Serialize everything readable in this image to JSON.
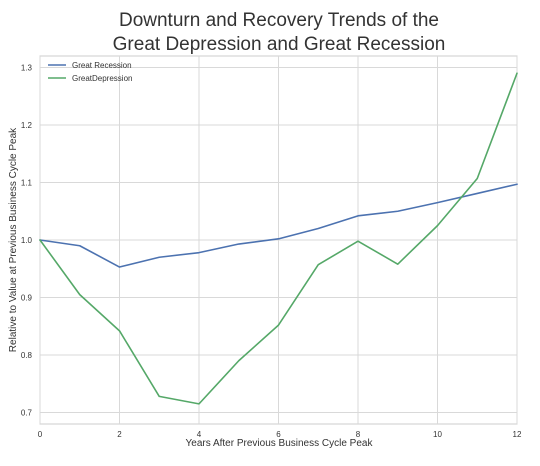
{
  "chart_data": {
    "type": "line",
    "title_lines": [
      "Downturn and Recovery Trends of the",
      "Great Depression and Great Recession"
    ],
    "xlabel": "Years After Previous Business Cycle Peak",
    "ylabel": "Relative to Value at Previous Business Cycle Peak",
    "xlim": [
      0,
      12
    ],
    "ylim": [
      0.68,
      1.32
    ],
    "xticks": [
      0,
      2,
      4,
      6,
      8,
      10,
      12
    ],
    "yticks": [
      0.7,
      0.8,
      0.9,
      1.0,
      1.1,
      1.2,
      1.3
    ],
    "ytick_labels": [
      "0.7",
      "0.8",
      "0.9",
      "1.0",
      "1.1",
      "1.2",
      "1.3"
    ],
    "grid": true,
    "legend_position": "top-left",
    "x": [
      0,
      1,
      2,
      3,
      4,
      5,
      6,
      7,
      8,
      9,
      10,
      11,
      12
    ],
    "series": [
      {
        "name": "Great Recession",
        "color": "#4c72b0",
        "values": [
          1.0,
          0.99,
          0.953,
          0.97,
          0.978,
          0.993,
          1.002,
          1.02,
          1.042,
          1.05,
          1.065,
          1.081,
          1.097
        ]
      },
      {
        "name": "GreatDepression",
        "color": "#55a868",
        "values": [
          1.0,
          0.905,
          0.842,
          0.728,
          0.715,
          0.79,
          0.852,
          0.957,
          0.998,
          0.958,
          1.025,
          1.107,
          1.29
        ]
      }
    ]
  }
}
